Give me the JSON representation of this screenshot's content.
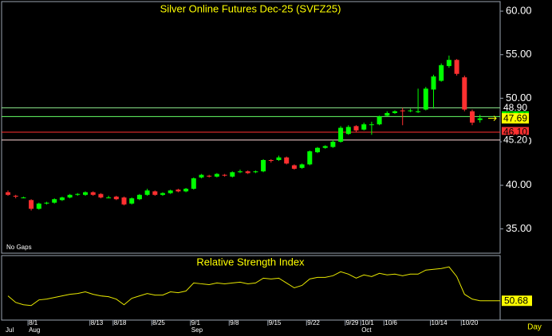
{
  "chart_data": [
    {
      "type": "candlestick",
      "title": "Silver Online Futures Dec-25 (SVFZ25)",
      "note": "No Gaps",
      "x_label": "Day",
      "categories": [
        null,
        null,
        null,
        "8/1",
        null,
        null,
        null,
        null,
        null,
        null,
        null,
        "8/13",
        null,
        null,
        "8/18",
        null,
        null,
        null,
        null,
        "8/25",
        null,
        null,
        null,
        null,
        "9/1",
        null,
        null,
        null,
        null,
        "9/8",
        null,
        null,
        null,
        null,
        "9/15",
        null,
        null,
        null,
        null,
        "9/22",
        null,
        null,
        null,
        null,
        "9/29",
        null,
        "10/1",
        null,
        null,
        "10/6",
        null,
        null,
        null,
        null,
        null,
        "10/14",
        null,
        null,
        null,
        "10/20",
        null,
        null
      ],
      "months": [
        "Jul",
        null,
        null,
        "Aug",
        null,
        null,
        null,
        null,
        null,
        null,
        null,
        null,
        null,
        null,
        null,
        null,
        null,
        null,
        null,
        null,
        null,
        null,
        null,
        null,
        "Sep",
        null,
        null,
        null,
        null,
        null,
        null,
        null,
        null,
        null,
        null,
        null,
        null,
        null,
        null,
        null,
        null,
        null,
        null,
        null,
        null,
        null,
        "Oct",
        null,
        null,
        null,
        null,
        null,
        null,
        null,
        null,
        null,
        null,
        null,
        null,
        null,
        null,
        null
      ],
      "open": [
        39.2,
        38.8,
        38.6,
        38.3,
        37.3,
        37.9,
        38.0,
        38.3,
        38.6,
        38.9,
        38.9,
        39.2,
        39.0,
        38.6,
        38.7,
        38.6,
        37.9,
        38.4,
        38.9,
        39.3,
        38.9,
        39.1,
        39.5,
        39.3,
        39.6,
        40.9,
        41.1,
        41.0,
        41.2,
        41.0,
        41.5,
        41.6,
        41.5,
        41.6,
        42.9,
        42.9,
        43.2,
        42.3,
        42.0,
        42.4,
        43.8,
        44.3,
        44.4,
        45.0,
        45.9,
        46.8,
        46.4,
        47.0,
        47.0,
        48.0,
        48.3,
        48.6,
        48.6,
        48.4,
        48.7,
        51.0,
        52.0,
        53.7,
        54.4,
        52.4,
        48.5,
        47.5
      ],
      "high": [
        39.4,
        38.9,
        38.7,
        38.4,
        38.0,
        38.1,
        38.5,
        38.7,
        39.0,
        39.1,
        39.3,
        39.3,
        39.1,
        38.8,
        38.8,
        38.7,
        38.6,
        39.0,
        39.6,
        39.4,
        39.2,
        39.5,
        39.6,
        39.7,
        40.9,
        41.3,
        41.2,
        41.4,
        41.3,
        41.6,
        41.8,
        41.7,
        41.7,
        43.0,
        43.0,
        43.4,
        43.3,
        42.4,
        42.5,
        44.0,
        44.4,
        44.6,
        45.2,
        46.8,
        46.9,
        46.9,
        47.2,
        47.3,
        48.0,
        48.5,
        48.6,
        48.9,
        48.8,
        51.1,
        51.3,
        52.7,
        54.0,
        54.9,
        54.5,
        52.6,
        48.7,
        48.1
      ],
      "low": [
        38.8,
        38.5,
        38.5,
        37.1,
        37.2,
        37.8,
        37.9,
        38.2,
        38.5,
        38.8,
        38.8,
        38.8,
        38.5,
        38.5,
        38.3,
        37.7,
        37.8,
        38.3,
        38.8,
        38.8,
        38.8,
        39.0,
        39.2,
        39.2,
        39.5,
        40.8,
        40.9,
        40.9,
        41.0,
        40.9,
        41.4,
        41.3,
        41.4,
        41.5,
        42.6,
        42.8,
        42.4,
        41.8,
        41.9,
        42.3,
        43.7,
        44.2,
        44.3,
        44.9,
        45.8,
        46.1,
        46.3,
        45.8,
        46.9,
        47.9,
        48.2,
        46.9,
        48.4,
        48.3,
        48.6,
        48.8,
        51.9,
        53.5,
        52.6,
        48.5,
        46.9,
        47.2
      ],
      "close": [
        38.9,
        38.7,
        38.6,
        37.3,
        37.9,
        38.0,
        38.4,
        38.6,
        38.9,
        39.0,
        39.2,
        38.9,
        38.6,
        38.6,
        38.4,
        37.8,
        38.5,
        38.9,
        39.4,
        38.9,
        39.1,
        39.4,
        39.3,
        39.6,
        40.8,
        41.2,
        41.0,
        41.3,
        41.1,
        41.5,
        41.6,
        41.4,
        41.6,
        42.9,
        42.8,
        43.2,
        42.5,
        41.9,
        42.4,
        43.9,
        44.3,
        44.5,
        45.0,
        46.6,
        46.7,
        46.3,
        47.0,
        47.0,
        47.9,
        48.3,
        48.5,
        48.5,
        48.6,
        48.5,
        51.1,
        52.5,
        53.8,
        54.4,
        52.8,
        48.7,
        47.2,
        47.69
      ],
      "up_color": "#00ff00",
      "down_color": "#ff3030",
      "ylim": [
        32.2,
        61.1
      ],
      "yticks": [
        {
          "value": 35,
          "label": "35.00"
        },
        {
          "value": 40,
          "label": "40.00"
        },
        {
          "value": 45,
          "label": "45.00"
        },
        {
          "value": 50,
          "label": "50.00"
        },
        {
          "value": 55,
          "label": "55.00"
        },
        {
          "value": 60,
          "label": "60.00"
        }
      ],
      "levels": [
        {
          "value": 48.9,
          "label": "48.90",
          "color": "#90ee90",
          "label_bg": "#000000",
          "label_color": "#ffffff"
        },
        {
          "value": 47.9,
          "label": "47.90",
          "color": "#66ff66",
          "label_bg": "#00ff00",
          "label_color": "#000000"
        },
        {
          "value": 46.1,
          "label": "46.10",
          "color": "#ff3030",
          "label_bg": "#ff3030",
          "label_color": "#000000"
        },
        {
          "value": 45.2,
          "label": "45.20",
          "color": "#ffd8d8",
          "label_bg": "#000000",
          "label_color": "#ffffff"
        }
      ],
      "last_price": 47.69,
      "last_color": "#ffff00"
    },
    {
      "type": "line",
      "title": "Relative Strength Index",
      "color": "#e8e800",
      "values": [
        55.5,
        49,
        46.7,
        45.9,
        51.5,
        52.3,
        53.9,
        55.5,
        57.1,
        57.9,
        59.5,
        57.1,
        55.5,
        54.7,
        52.3,
        46.7,
        53.1,
        55.5,
        57.9,
        56.3,
        56.3,
        59.5,
        58.7,
        60.3,
        68.3,
        67.5,
        66.7,
        68.3,
        67.5,
        68.3,
        69.1,
        67.5,
        68.3,
        73.1,
        72.3,
        73.1,
        68.3,
        63.5,
        65.9,
        72.3,
        73.9,
        73.9,
        75.5,
        79.5,
        77.1,
        73.1,
        76.3,
        74.7,
        77.9,
        76.3,
        77.1,
        75.5,
        77.1,
        77.1,
        81.1,
        81.9,
        82.7,
        84.3,
        74.7,
        57.1,
        52.3,
        50.68
      ],
      "ylim": [
        31.5,
        95.5
      ]
    }
  ]
}
